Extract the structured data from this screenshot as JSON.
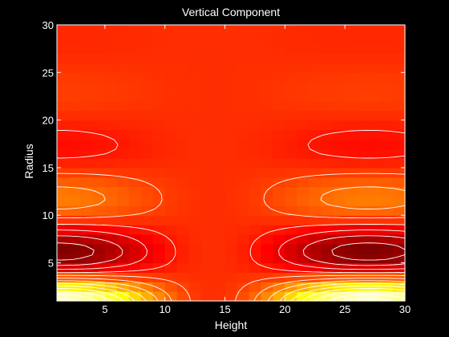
{
  "chart_data": {
    "type": "heatmap",
    "title": "Vertical Component",
    "xlabel": "Height",
    "ylabel": "Radius",
    "xlim": [
      1,
      30
    ],
    "ylim": [
      1,
      30
    ],
    "x_ticks": [
      5,
      10,
      15,
      20,
      25,
      30
    ],
    "y_ticks": [
      5,
      10,
      15,
      20,
      25,
      30
    ],
    "x_tick_labels": [
      "5",
      "10",
      "15",
      "20",
      "25",
      "30"
    ],
    "y_tick_labels": [
      "5",
      "10",
      "15",
      "20",
      "25",
      "30"
    ],
    "colormap": "hot",
    "contour_color": "#ffffff",
    "grid": false,
    "background": "#000000",
    "grid_size": [
      30,
      30
    ]
  }
}
